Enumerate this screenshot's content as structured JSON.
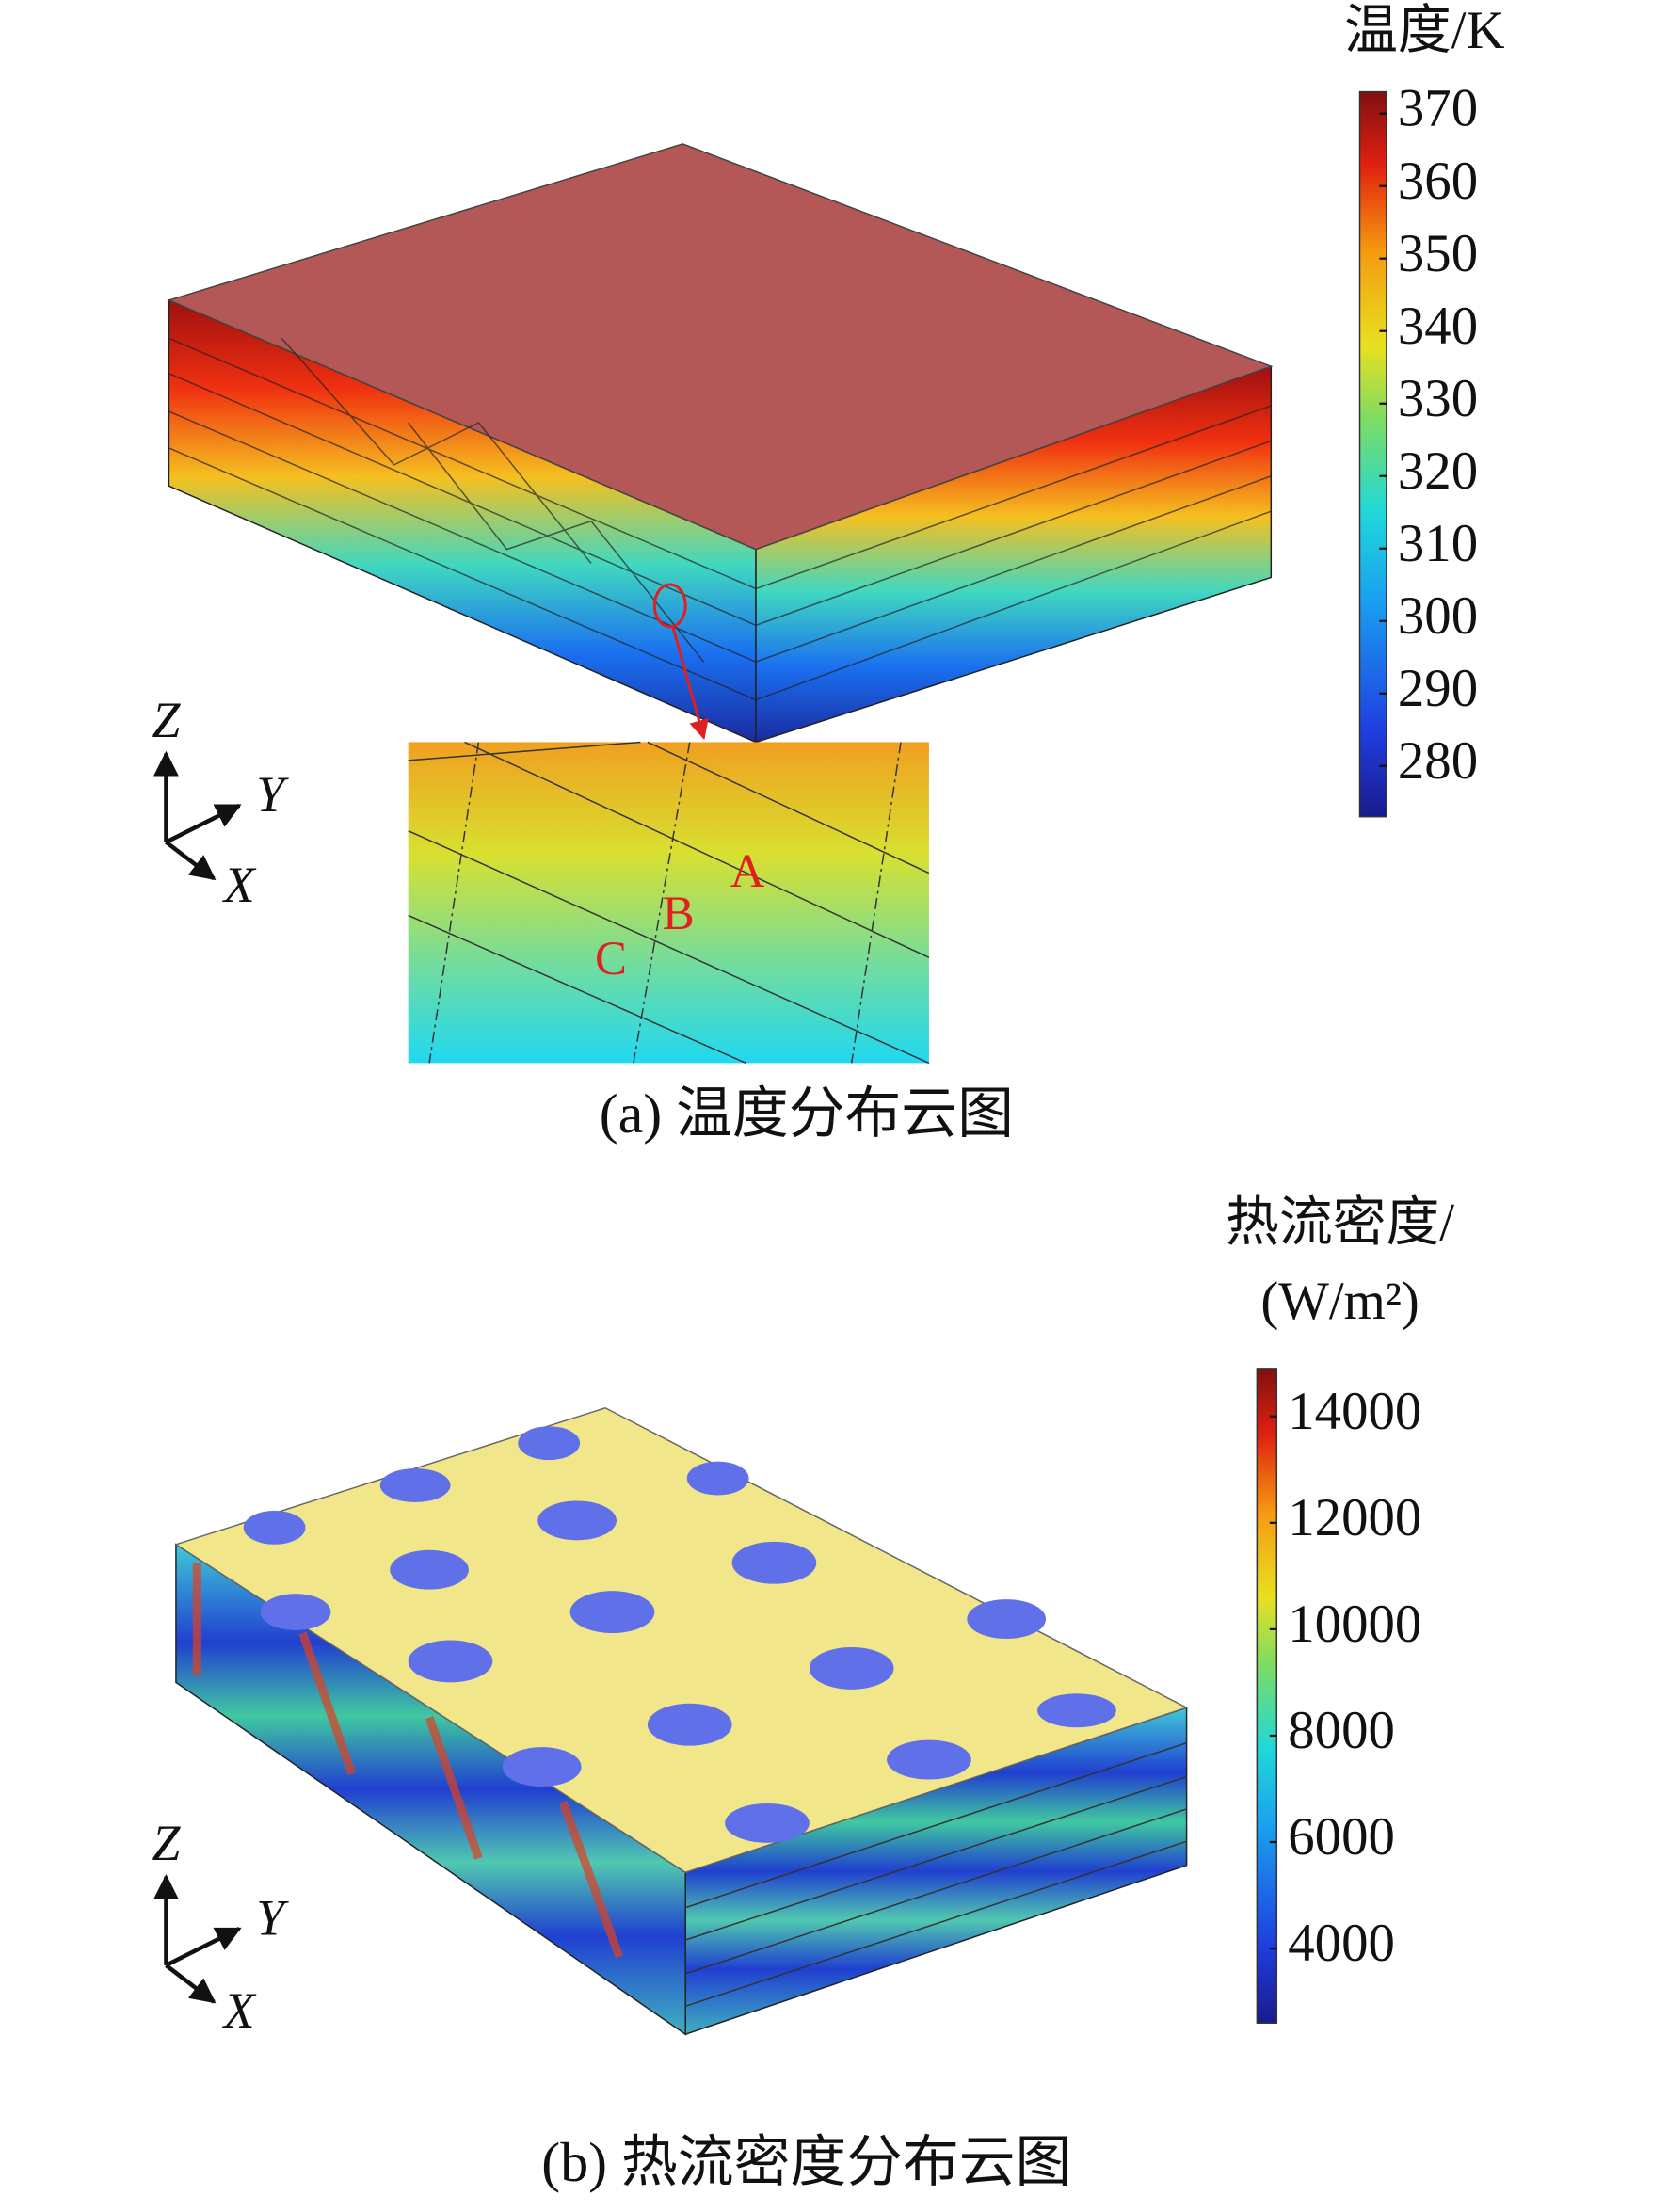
{
  "panels": [
    {
      "colorbar": {
        "title": "温度/K",
        "limits": [
          273,
          373
        ],
        "ticks": [
          280,
          290,
          300,
          310,
          320,
          330,
          340,
          350,
          360,
          370
        ]
      },
      "axes": {
        "z": "Z",
        "y": "Y",
        "x": "X"
      },
      "inset_labels": [
        "A",
        "B",
        "C"
      ],
      "caption": "(a) 温度分布云图"
    },
    {
      "colorbar": {
        "title": "热流密度/",
        "title_unit": "(W/m²)",
        "limits": [
          2600,
          14900
        ],
        "ticks": [
          4000,
          6000,
          8000,
          10000,
          12000,
          14000
        ]
      },
      "axes": {
        "z": "Z",
        "y": "Y",
        "x": "X"
      },
      "caption": "(b) 热流密度分布云图"
    }
  ]
}
